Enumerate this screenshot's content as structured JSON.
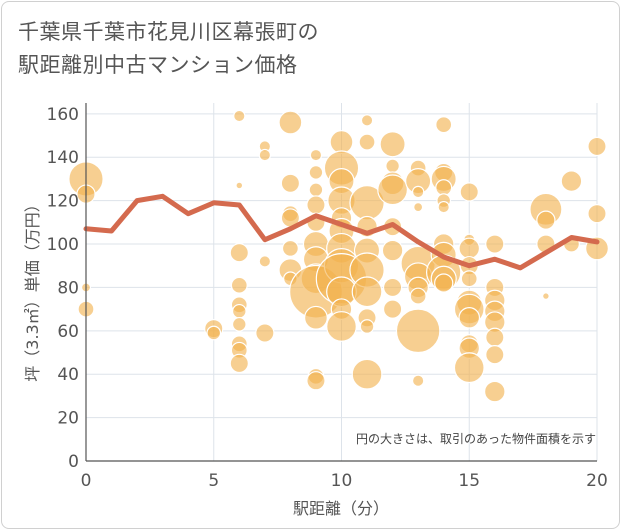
{
  "title": {
    "line1": "千葉県千葉市花見川区幕張町の",
    "line2": "駅距離別中古マンション価格"
  },
  "annotation": "円の大きさは、取引のあった物件面積を示す",
  "colors": {
    "bubble": "#f2b24d",
    "line": "#d46a4e",
    "grid": "#dde3ea",
    "axis": "#555555"
  },
  "chart_data": {
    "type": "scatter",
    "xlabel": "駅距離（分）",
    "ylabel": "坪（3.3㎡）単価（万円）",
    "xlim": [
      0,
      20
    ],
    "ylim": [
      0,
      165
    ],
    "xticks": [
      0,
      5,
      10,
      15,
      20
    ],
    "yticks": [
      0,
      20,
      40,
      60,
      80,
      100,
      120,
      140,
      160
    ],
    "grid": true,
    "average_line": {
      "x": [
        0,
        1,
        2,
        3,
        4,
        5,
        6,
        7,
        8,
        9,
        10,
        11,
        12,
        13,
        14,
        15,
        16,
        17,
        18,
        19,
        20
      ],
      "y": [
        107,
        106,
        120,
        122,
        114,
        119,
        118,
        102,
        107,
        113,
        109,
        105,
        109,
        101,
        94,
        90,
        93,
        89,
        96,
        103,
        101
      ]
    },
    "bubbles": [
      {
        "x": 0,
        "y": 130,
        "size": 14
      },
      {
        "x": 0,
        "y": 123,
        "size": 7
      },
      {
        "x": 0,
        "y": 70,
        "size": 6
      },
      {
        "x": 0,
        "y": 80,
        "size": 3
      },
      {
        "x": 5,
        "y": 61,
        "size": 7
      },
      {
        "x": 5,
        "y": 59,
        "size": 5
      },
      {
        "x": 6,
        "y": 159,
        "size": 4
      },
      {
        "x": 6,
        "y": 96,
        "size": 7
      },
      {
        "x": 6,
        "y": 81,
        "size": 6
      },
      {
        "x": 6,
        "y": 72,
        "size": 6
      },
      {
        "x": 6,
        "y": 69,
        "size": 5
      },
      {
        "x": 6,
        "y": 63,
        "size": 5
      },
      {
        "x": 6,
        "y": 54,
        "size": 6
      },
      {
        "x": 6,
        "y": 51,
        "size": 6
      },
      {
        "x": 6,
        "y": 45,
        "size": 7
      },
      {
        "x": 6,
        "y": 127,
        "size": 2
      },
      {
        "x": 7,
        "y": 145,
        "size": 4
      },
      {
        "x": 7,
        "y": 141,
        "size": 4
      },
      {
        "x": 7,
        "y": 92,
        "size": 4
      },
      {
        "x": 7,
        "y": 59,
        "size": 7
      },
      {
        "x": 8,
        "y": 156,
        "size": 9
      },
      {
        "x": 8,
        "y": 128,
        "size": 7
      },
      {
        "x": 8,
        "y": 114,
        "size": 6
      },
      {
        "x": 8,
        "y": 112,
        "size": 7
      },
      {
        "x": 8,
        "y": 98,
        "size": 6
      },
      {
        "x": 8,
        "y": 88,
        "size": 9
      },
      {
        "x": 8,
        "y": 84,
        "size": 5
      },
      {
        "x": 9,
        "y": 141,
        "size": 4
      },
      {
        "x": 9,
        "y": 133,
        "size": 5
      },
      {
        "x": 9,
        "y": 125,
        "size": 5
      },
      {
        "x": 9,
        "y": 118,
        "size": 7
      },
      {
        "x": 9,
        "y": 110,
        "size": 7
      },
      {
        "x": 9,
        "y": 100,
        "size": 10
      },
      {
        "x": 9,
        "y": 93,
        "size": 10
      },
      {
        "x": 9,
        "y": 84,
        "size": 12
      },
      {
        "x": 9,
        "y": 78,
        "size": 22
      },
      {
        "x": 9,
        "y": 66,
        "size": 9
      },
      {
        "x": 9,
        "y": 39,
        "size": 6
      },
      {
        "x": 9,
        "y": 37,
        "size": 7
      },
      {
        "x": 10,
        "y": 147,
        "size": 9
      },
      {
        "x": 10,
        "y": 135,
        "size": 14
      },
      {
        "x": 10,
        "y": 129,
        "size": 10
      },
      {
        "x": 10,
        "y": 120,
        "size": 11
      },
      {
        "x": 10,
        "y": 112,
        "size": 8
      },
      {
        "x": 10,
        "y": 106,
        "size": 10
      },
      {
        "x": 10,
        "y": 98,
        "size": 12
      },
      {
        "x": 10,
        "y": 90,
        "size": 14
      },
      {
        "x": 10,
        "y": 84,
        "size": 21
      },
      {
        "x": 10,
        "y": 78,
        "size": 12
      },
      {
        "x": 10,
        "y": 70,
        "size": 8
      },
      {
        "x": 10,
        "y": 62,
        "size": 12
      },
      {
        "x": 11,
        "y": 157,
        "size": 4
      },
      {
        "x": 11,
        "y": 147,
        "size": 6
      },
      {
        "x": 11,
        "y": 119,
        "size": 14
      },
      {
        "x": 11,
        "y": 108,
        "size": 8
      },
      {
        "x": 11,
        "y": 97,
        "size": 10
      },
      {
        "x": 11,
        "y": 88,
        "size": 14
      },
      {
        "x": 11,
        "y": 78,
        "size": 12
      },
      {
        "x": 11,
        "y": 66,
        "size": 7
      },
      {
        "x": 11,
        "y": 62,
        "size": 5
      },
      {
        "x": 11,
        "y": 40,
        "size": 12
      },
      {
        "x": 12,
        "y": 146,
        "size": 10
      },
      {
        "x": 12,
        "y": 136,
        "size": 5
      },
      {
        "x": 12,
        "y": 128,
        "size": 9
      },
      {
        "x": 12,
        "y": 125,
        "size": 12
      },
      {
        "x": 12,
        "y": 108,
        "size": 7
      },
      {
        "x": 12,
        "y": 97,
        "size": 8
      },
      {
        "x": 12,
        "y": 80,
        "size": 7
      },
      {
        "x": 12,
        "y": 70,
        "size": 7
      },
      {
        "x": 13,
        "y": 135,
        "size": 6
      },
      {
        "x": 13,
        "y": 129,
        "size": 10
      },
      {
        "x": 13,
        "y": 124,
        "size": 4
      },
      {
        "x": 13,
        "y": 117,
        "size": 3
      },
      {
        "x": 13,
        "y": 91,
        "size": 14
      },
      {
        "x": 13,
        "y": 85,
        "size": 11
      },
      {
        "x": 13,
        "y": 80,
        "size": 8
      },
      {
        "x": 13,
        "y": 76,
        "size": 6
      },
      {
        "x": 13,
        "y": 60,
        "size": 18
      },
      {
        "x": 13,
        "y": 37,
        "size": 4
      },
      {
        "x": 14,
        "y": 155,
        "size": 6
      },
      {
        "x": 14,
        "y": 133,
        "size": 7
      },
      {
        "x": 14,
        "y": 130,
        "size": 10
      },
      {
        "x": 14,
        "y": 126,
        "size": 6
      },
      {
        "x": 14,
        "y": 120,
        "size": 5
      },
      {
        "x": 14,
        "y": 117,
        "size": 4
      },
      {
        "x": 14,
        "y": 100,
        "size": 8
      },
      {
        "x": 14,
        "y": 95,
        "size": 10
      },
      {
        "x": 14,
        "y": 87,
        "size": 14
      },
      {
        "x": 14,
        "y": 84,
        "size": 10
      },
      {
        "x": 14,
        "y": 82,
        "size": 7
      },
      {
        "x": 15,
        "y": 124,
        "size": 7
      },
      {
        "x": 15,
        "y": 102,
        "size": 4
      },
      {
        "x": 15,
        "y": 98,
        "size": 8
      },
      {
        "x": 15,
        "y": 90,
        "size": 7
      },
      {
        "x": 15,
        "y": 84,
        "size": 6
      },
      {
        "x": 15,
        "y": 73,
        "size": 10
      },
      {
        "x": 15,
        "y": 70,
        "size": 12
      },
      {
        "x": 15,
        "y": 66,
        "size": 8
      },
      {
        "x": 15,
        "y": 54,
        "size": 7
      },
      {
        "x": 15,
        "y": 52,
        "size": 8
      },
      {
        "x": 15,
        "y": 43,
        "size": 12
      },
      {
        "x": 16,
        "y": 100,
        "size": 7
      },
      {
        "x": 16,
        "y": 80,
        "size": 7
      },
      {
        "x": 16,
        "y": 74,
        "size": 8
      },
      {
        "x": 16,
        "y": 69,
        "size": 8
      },
      {
        "x": 16,
        "y": 64,
        "size": 8
      },
      {
        "x": 16,
        "y": 57,
        "size": 7
      },
      {
        "x": 16,
        "y": 49,
        "size": 7
      },
      {
        "x": 16,
        "y": 32,
        "size": 8
      },
      {
        "x": 18,
        "y": 116,
        "size": 13
      },
      {
        "x": 18,
        "y": 111,
        "size": 7
      },
      {
        "x": 18,
        "y": 100,
        "size": 7
      },
      {
        "x": 18,
        "y": 76,
        "size": 2
      },
      {
        "x": 19,
        "y": 129,
        "size": 8
      },
      {
        "x": 19,
        "y": 100,
        "size": 6
      },
      {
        "x": 20,
        "y": 145,
        "size": 7
      },
      {
        "x": 20,
        "y": 114,
        "size": 7
      },
      {
        "x": 20,
        "y": 98,
        "size": 9
      }
    ]
  }
}
